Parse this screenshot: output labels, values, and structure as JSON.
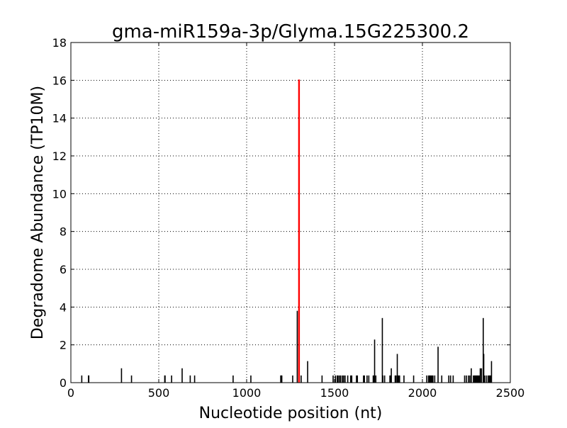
{
  "chart_data": {
    "type": "bar",
    "title": "gma-miR159a-3p/Glyma.15G225300.2",
    "xlabel": "Nucleotide position (nt)",
    "ylabel": "Degradome Abundance (TP10M)",
    "xlim": [
      0,
      2500
    ],
    "ylim": [
      0,
      18
    ],
    "xticks": [
      0,
      500,
      1000,
      1500,
      2000,
      2500
    ],
    "yticks": [
      0,
      2,
      4,
      6,
      8,
      10,
      12,
      14,
      16,
      18
    ],
    "grid": true,
    "colors": {
      "default": "#000000",
      "highlight": "#ff0000"
    },
    "series": [
      {
        "color": "#000000",
        "points": [
          [
            62,
            0.38
          ],
          [
            100,
            0.38
          ],
          [
            102,
            0.38
          ],
          [
            288,
            0.76
          ],
          [
            345,
            0.38
          ],
          [
            534,
            0.38
          ],
          [
            536,
            0.38
          ],
          [
            573,
            0.38
          ],
          [
            633,
            0.76
          ],
          [
            679,
            0.38
          ],
          [
            704,
            0.38
          ],
          [
            923,
            0.38
          ],
          [
            1024,
            0.38
          ],
          [
            1194,
            0.38
          ],
          [
            1197,
            0.38
          ],
          [
            1200,
            0.38
          ],
          [
            1262,
            0.38
          ],
          [
            1288,
            3.8
          ],
          [
            1310,
            0.38
          ],
          [
            1347,
            1.14
          ],
          [
            1429,
            0.38
          ],
          [
            1492,
            0.38
          ],
          [
            1505,
            0.38
          ],
          [
            1515,
            0.38
          ],
          [
            1520,
            0.38
          ],
          [
            1528,
            0.38
          ],
          [
            1535,
            0.38
          ],
          [
            1545,
            0.38
          ],
          [
            1552,
            0.38
          ],
          [
            1560,
            0.38
          ],
          [
            1575,
            0.38
          ],
          [
            1592,
            0.38
          ],
          [
            1598,
            0.38
          ],
          [
            1625,
            0.38
          ],
          [
            1630,
            0.38
          ],
          [
            1665,
            0.38
          ],
          [
            1670,
            0.38
          ],
          [
            1685,
            0.38
          ],
          [
            1695,
            0.38
          ],
          [
            1720,
            0.38
          ],
          [
            1725,
            0.38
          ],
          [
            1728,
            2.28
          ],
          [
            1735,
            0.38
          ],
          [
            1772,
            3.42
          ],
          [
            1775,
            0.38
          ],
          [
            1785,
            0.38
          ],
          [
            1815,
            0.38
          ],
          [
            1820,
            0.38
          ],
          [
            1823,
            0.76
          ],
          [
            1845,
            0.38
          ],
          [
            1850,
            0.38
          ],
          [
            1857,
            1.52
          ],
          [
            1860,
            0.38
          ],
          [
            1865,
            0.38
          ],
          [
            1870,
            0.38
          ],
          [
            1895,
            0.38
          ],
          [
            1950,
            0.38
          ],
          [
            2025,
            0.38
          ],
          [
            2035,
            0.38
          ],
          [
            2040,
            0.38
          ],
          [
            2045,
            0.38
          ],
          [
            2050,
            0.38
          ],
          [
            2055,
            0.38
          ],
          [
            2060,
            0.38
          ],
          [
            2070,
            0.38
          ],
          [
            2089,
            1.9
          ],
          [
            2110,
            0.38
          ],
          [
            2150,
            0.38
          ],
          [
            2160,
            0.38
          ],
          [
            2175,
            0.38
          ],
          [
            2240,
            0.38
          ],
          [
            2250,
            0.38
          ],
          [
            2262,
            0.38
          ],
          [
            2270,
            0.38
          ],
          [
            2278,
            0.76
          ],
          [
            2290,
            0.38
          ],
          [
            2296,
            0.38
          ],
          [
            2300,
            0.38
          ],
          [
            2305,
            0.38
          ],
          [
            2310,
            0.38
          ],
          [
            2315,
            0.38
          ],
          [
            2320,
            0.38
          ],
          [
            2325,
            0.38
          ],
          [
            2329,
            0.76
          ],
          [
            2336,
            0.76
          ],
          [
            2346,
            3.42
          ],
          [
            2349,
            1.52
          ],
          [
            2355,
            0.38
          ],
          [
            2365,
            0.38
          ],
          [
            2375,
            0.38
          ],
          [
            2380,
            0.38
          ],
          [
            2385,
            0.38
          ],
          [
            2388,
            0.38
          ],
          [
            2393,
            1.14
          ]
        ]
      },
      {
        "color": "#ff0000",
        "points": [
          [
            1298,
            16.04
          ]
        ]
      }
    ]
  }
}
